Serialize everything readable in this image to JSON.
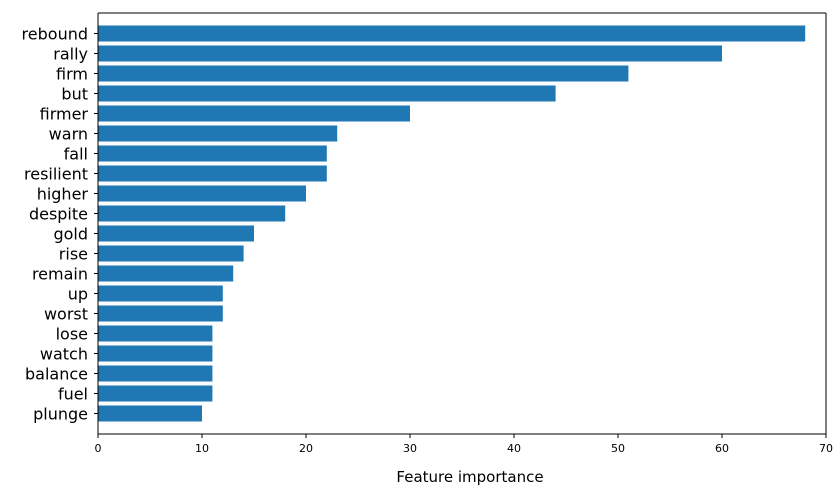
{
  "chart_data": {
    "type": "bar",
    "orientation": "horizontal",
    "categories": [
      "rebound",
      "rally",
      "firm",
      "but",
      "firmer",
      "warn",
      "fall",
      "resilient",
      "higher",
      "despite",
      "gold",
      "rise",
      "remain",
      "up",
      "worst",
      "lose",
      "watch",
      "balance",
      "fuel",
      "plunge"
    ],
    "values": [
      68,
      60,
      51,
      44,
      30,
      23,
      22,
      22,
      20,
      18,
      15,
      14,
      13,
      12,
      12,
      11,
      11,
      11,
      11,
      10
    ],
    "xlabel": "Feature importance",
    "ylabel": "",
    "xlim": [
      0,
      70
    ],
    "xticks": [
      0,
      10,
      20,
      30,
      40,
      50,
      60,
      70
    ],
    "grid": false,
    "bar_color": "#1f77b4"
  }
}
